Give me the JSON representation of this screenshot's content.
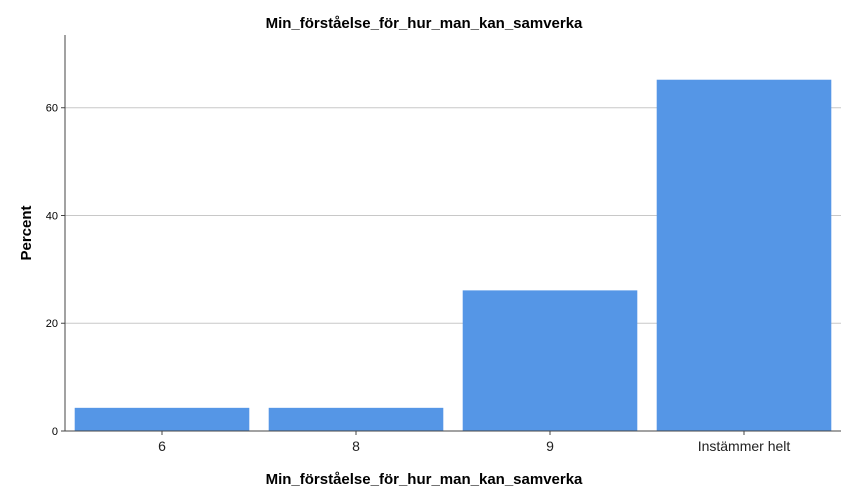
{
  "chart_data": {
    "type": "bar",
    "title": "Min_förståelse_för_hur_man_kan_samverka",
    "xlabel": "Min_förståelse_för_hur_man_kan_samverka",
    "ylabel": "Percent",
    "categories": [
      "6",
      "8",
      "9",
      "Instämmer helt"
    ],
    "values": [
      4.3,
      4.3,
      26.1,
      65.2
    ],
    "ylim": [
      0,
      73.5
    ],
    "yticks": [
      0,
      20,
      40,
      60
    ],
    "ytick_labels": [
      "0",
      "20",
      "40",
      "60"
    ],
    "grid": true,
    "bar_color": "#5596e6",
    "grid_color": "#c8c8c8"
  }
}
